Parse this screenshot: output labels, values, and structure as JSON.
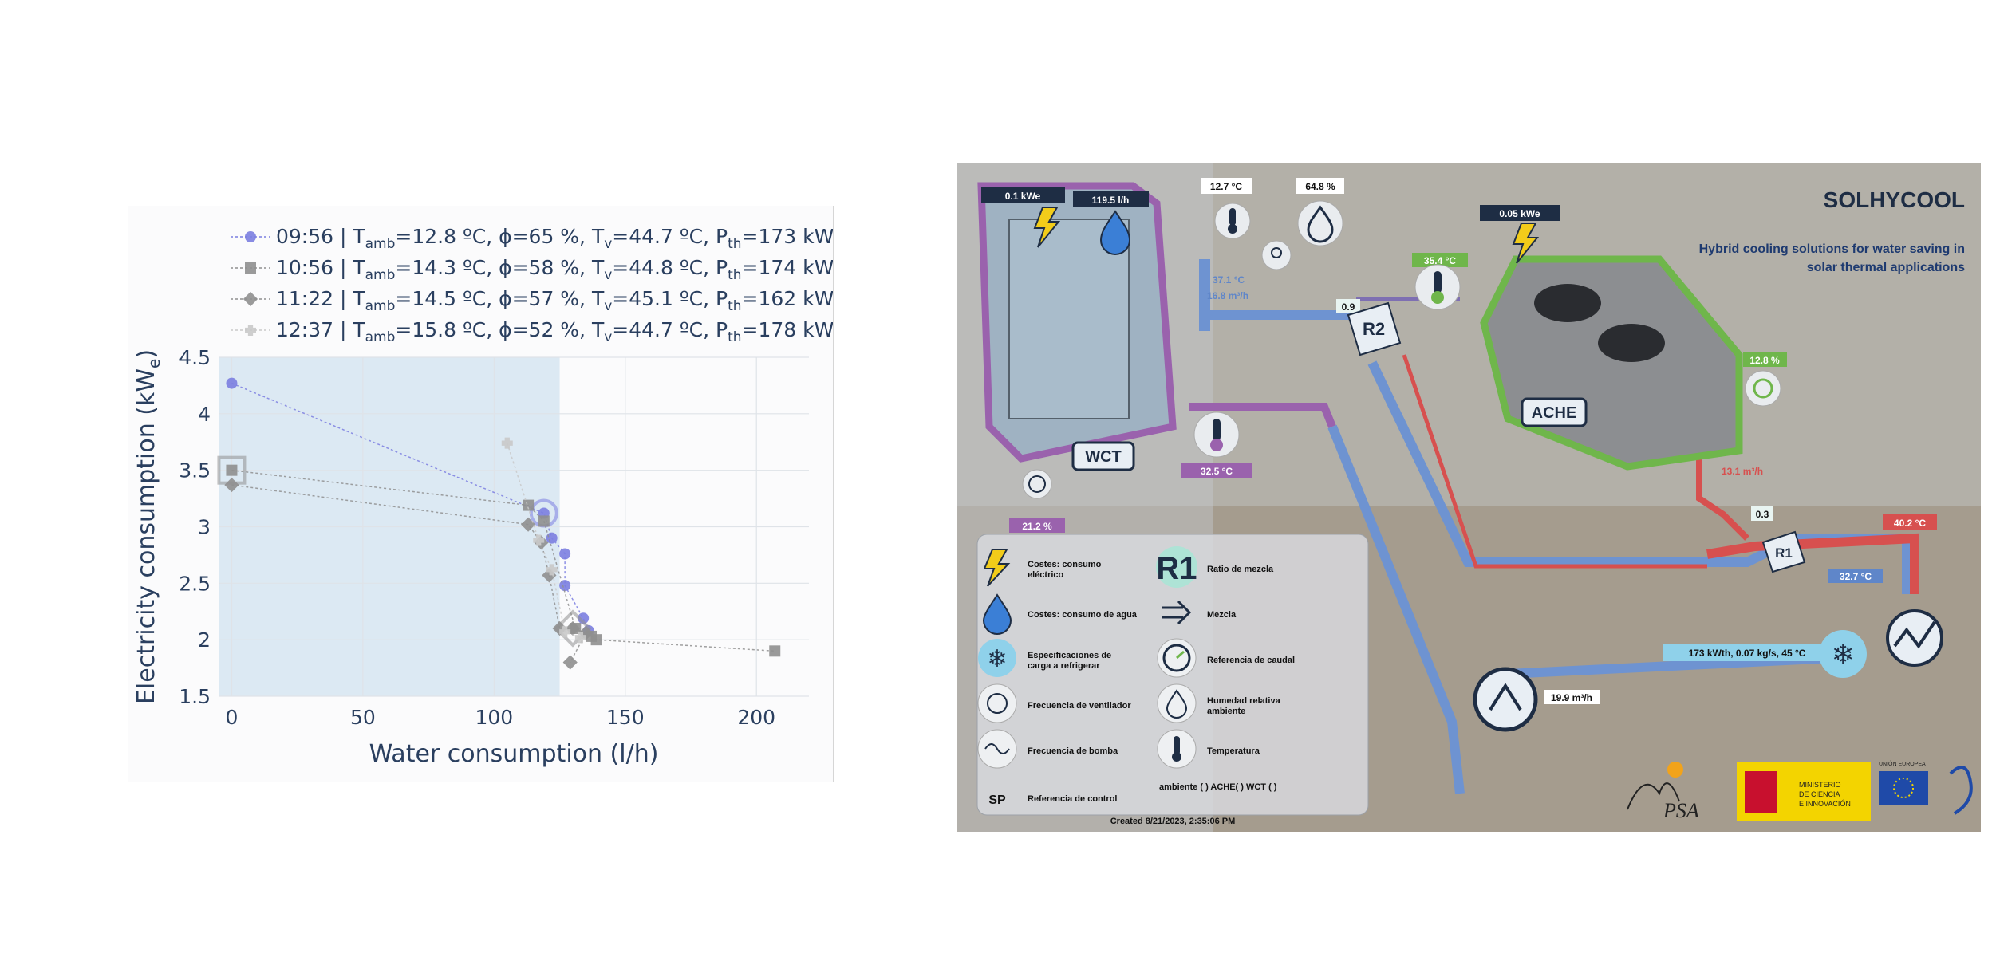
{
  "chart_data": {
    "type": "scatter",
    "xlabel": "Water consumption (l/h)",
    "ylabel_main": "Electricity consumption (kW",
    "ylabel_sub": "e",
    "ylabel_close": ")",
    "xlim": [
      -5,
      220
    ],
    "ylim": [
      1.5,
      4.5
    ],
    "xticks": [
      0,
      50,
      100,
      150,
      200
    ],
    "yticks": [
      1.5,
      2,
      2.5,
      3,
      3.5,
      4,
      4.5
    ],
    "xtick_labels": [
      "0",
      "50",
      "100",
      "150",
      "200"
    ],
    "ytick_labels": [
      "1.5",
      "2",
      "2.5",
      "3",
      "3.5",
      "4",
      "4.5"
    ],
    "shaded_region_x": [
      -5,
      125
    ],
    "series": [
      {
        "legend": {
          "time": "09:56",
          "tamb": "12.8 ºC",
          "phi": "65 %",
          "tv": "44.7 ºC",
          "pth": "173 kW"
        },
        "marker": "circle",
        "color": "#7b7ee0",
        "x": [
          0,
          119,
          122,
          127,
          127,
          134,
          136
        ],
        "y": [
          4.27,
          3.12,
          2.9,
          2.76,
          2.48,
          2.19,
          2.08
        ],
        "highlight_index": 1
      },
      {
        "legend": {
          "time": "10:56",
          "tamb": "14.3 ºC",
          "phi": "58 %",
          "tv": "44.8 ºC",
          "pth": "174 kW"
        },
        "marker": "square",
        "color": "#8f8f8f",
        "x": [
          0,
          113,
          119,
          131,
          137,
          139,
          207
        ],
        "y": [
          3.5,
          3.19,
          3.05,
          2.1,
          2.03,
          2.0,
          1.9
        ],
        "highlight_index": 0
      },
      {
        "legend": {
          "time": "11:22",
          "tamb": "14.5 ºC",
          "phi": "57 %",
          "tv": "45.1 ºC",
          "pth": "162 kW"
        },
        "marker": "diamond",
        "color": "#8f8f8f",
        "x": [
          0,
          113,
          118,
          121,
          125,
          130,
          135,
          129
        ],
        "y": [
          3.37,
          3.02,
          2.86,
          2.57,
          2.1,
          2.1,
          2.06,
          1.8
        ],
        "highlight_index": 5
      },
      {
        "legend": {
          "time": "12:37",
          "tamb": "15.8 ºC",
          "phi": "52 %",
          "tv": "44.7 ºC",
          "pth": "178 kW"
        },
        "marker": "cross",
        "color": "#c9c9c9",
        "x": [
          105,
          117,
          122,
          127,
          133
        ],
        "y": [
          3.74,
          2.88,
          2.62,
          2.07,
          2.02
        ],
        "highlight_index": -1
      }
    ]
  },
  "scada": {
    "title": "SOLHYCOOL",
    "subtitle_line1": "Hybrid cooling solutions for water saving in",
    "subtitle_line2": "solar thermal applications",
    "wct_label": "WCT",
    "ache_label": "ACHE",
    "r1_label": "R1",
    "r2_label": "R2",
    "tag_wct_power": "0.1 kWe",
    "tag_wct_water": "119.5 l/h",
    "tag_amb_temp": "12.7 °C",
    "tag_amb_hum": "64.8 %",
    "tag_ache_power": "0.05 kWe",
    "tag_ache_temp": "35.4 °C",
    "tag_ache_fan": "12.8 %",
    "tag_mix_temp": "37.1 °C",
    "tag_mix_flow": "16.8 m³/h",
    "tag_r2": "0.9",
    "tag_wct_out": "32.5 °C",
    "tag_wct_fan": "21.2 %",
    "tag_ache_flow": "13.1 m³/h",
    "tag_r1": "0.3",
    "tag_hot": "40.2 °C",
    "tag_cold": "32.7 °C",
    "tag_load": "173 kWth, 0.07 kg/s, 45 °C",
    "tag_pump_flow": "19.9 m³/h",
    "legend_items": [
      "Costes: consumo eléctrico",
      "Costes: consumo de agua",
      "Especificaciones de carga a refrigerar",
      "Frecuencia de ventilador",
      "Frecuencia de bomba",
      "Referencia de control",
      "Ratio de mezcla",
      "Mezcla",
      "Referencia de caudal",
      "Humedad relativa ambiente",
      "Temperatura",
      "ambiente (    ) ACHE(    ) WCT (    )"
    ],
    "legend_r1": "R1",
    "legend_sp": "SP",
    "created": "Created 8/21/2023, 2:35:06 PM",
    "ministerio_line1": "MINISTERIO",
    "ministerio_line2": "DE CIENCIA",
    "ministerio_line3": "E INNOVACIÓN",
    "ue_label": "UNIÓN EUROPEA",
    "psa_label": "PSA"
  },
  "colors": {
    "wct": "#9a62ad",
    "ache": "#6fb64b",
    "hot": "#d7504f",
    "cold": "#5f86c9",
    "dark": "#1e2d44"
  }
}
